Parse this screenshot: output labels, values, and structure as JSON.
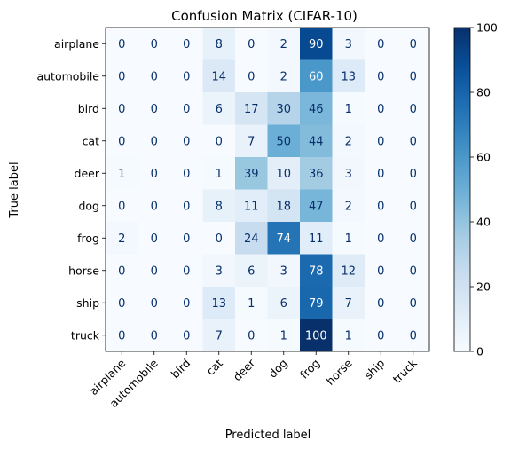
{
  "chart_data": {
    "type": "heatmap",
    "title": "Confusion Matrix (CIFAR-10)",
    "xlabel": "Predicted label",
    "ylabel": "True label",
    "x_categories": [
      "airplane",
      "automobile",
      "bird",
      "cat",
      "deer",
      "dog",
      "frog",
      "horse",
      "ship",
      "truck"
    ],
    "y_categories": [
      "airplane",
      "automobile",
      "bird",
      "cat",
      "deer",
      "dog",
      "frog",
      "horse",
      "ship",
      "truck"
    ],
    "values": [
      [
        0,
        0,
        0,
        8,
        0,
        2,
        90,
        3,
        0,
        0
      ],
      [
        0,
        0,
        0,
        14,
        0,
        2,
        60,
        13,
        0,
        0
      ],
      [
        0,
        0,
        0,
        6,
        17,
        30,
        46,
        1,
        0,
        0
      ],
      [
        0,
        0,
        0,
        0,
        7,
        50,
        44,
        2,
        0,
        0
      ],
      [
        1,
        0,
        0,
        1,
        39,
        10,
        36,
        3,
        0,
        0
      ],
      [
        0,
        0,
        0,
        8,
        11,
        18,
        47,
        2,
        0,
        0
      ],
      [
        2,
        0,
        0,
        0,
        24,
        74,
        11,
        1,
        0,
        0
      ],
      [
        0,
        0,
        0,
        3,
        6,
        3,
        78,
        12,
        0,
        0
      ],
      [
        0,
        0,
        0,
        13,
        1,
        6,
        79,
        7,
        0,
        0
      ],
      [
        0,
        0,
        0,
        7,
        0,
        1,
        100,
        1,
        0,
        0
      ]
    ],
    "colormap": "Blues",
    "vmin": 0,
    "vmax": 100,
    "colorbar_ticks": [
      "0",
      "20",
      "40",
      "60",
      "80",
      "100"
    ],
    "grid": false
  }
}
